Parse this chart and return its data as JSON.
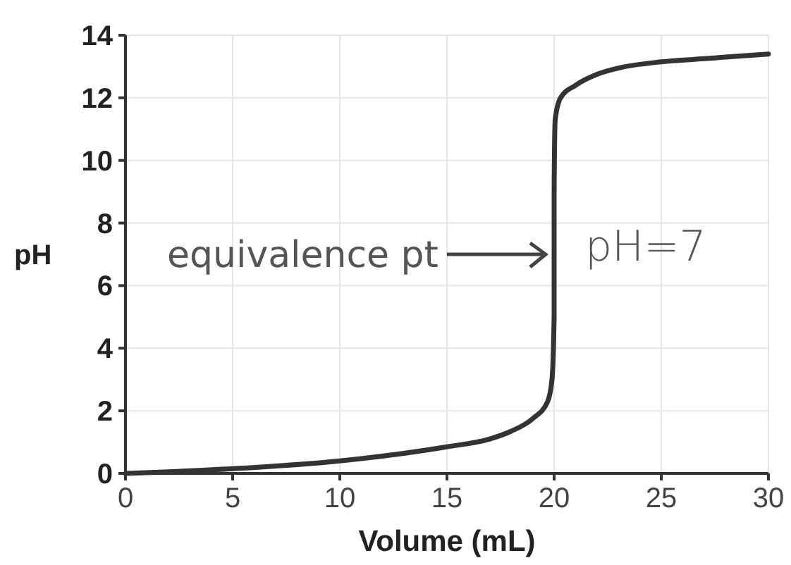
{
  "chart_data": {
    "type": "line",
    "xlabel": "Volume (mL)",
    "ylabel": "pH",
    "xlim": [
      0,
      30
    ],
    "xticks": [
      0,
      5,
      10,
      15,
      20,
      25,
      30
    ],
    "ylim": [
      0,
      14
    ],
    "yticks": [
      0,
      2,
      4,
      6,
      8,
      10,
      12,
      14
    ],
    "grid": true,
    "series": [
      {
        "color": "#333333",
        "x": [
          0,
          5,
          10,
          15,
          17,
          18,
          19,
          19.7,
          19.9,
          20,
          20,
          20.05,
          20.3,
          21,
          22,
          23,
          25,
          27,
          30
        ],
        "values": [
          0,
          0.15,
          0.4,
          0.85,
          1.1,
          1.35,
          1.75,
          2.3,
          3,
          5,
          9,
          11.3,
          12,
          12.4,
          12.75,
          12.95,
          13.15,
          13.25,
          13.4
        ]
      }
    ],
    "annotations": [
      "equivalence pt",
      "pH=7"
    ]
  }
}
